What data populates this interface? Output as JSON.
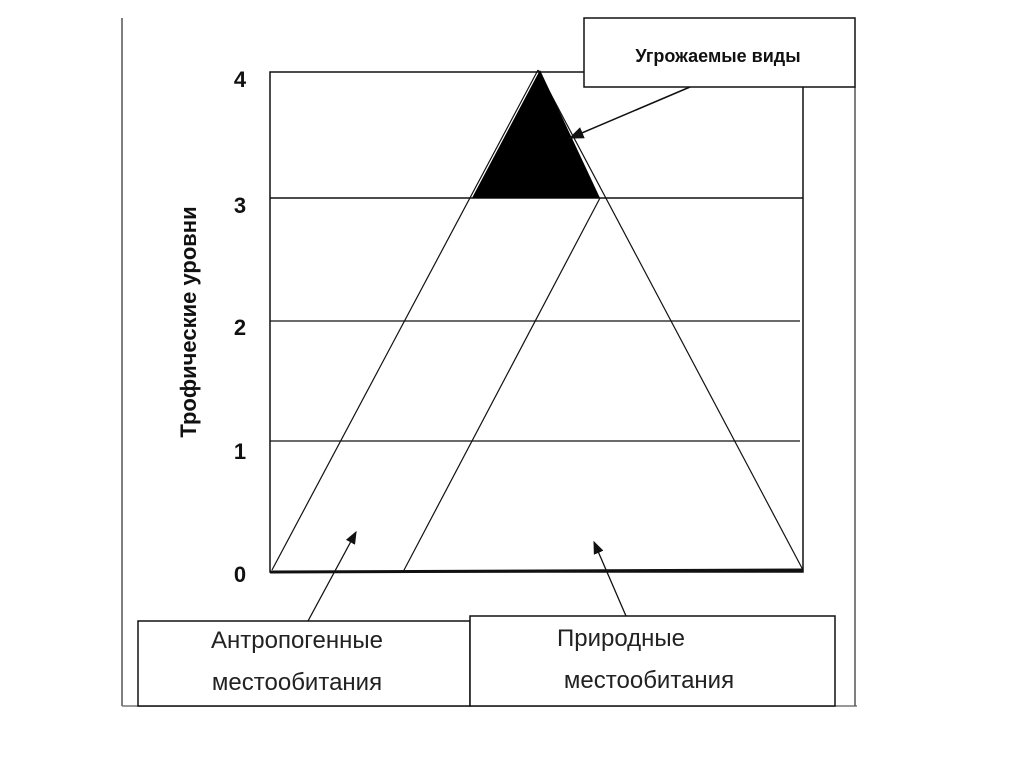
{
  "y_axis": {
    "label": "Трофические уровни",
    "ticks": [
      "0",
      "1",
      "2",
      "3",
      "4"
    ]
  },
  "callouts": {
    "threatened": "Угрожаемые виды",
    "anthropogenic": [
      "Антропогенные",
      "местообитания"
    ],
    "natural": [
      "Природные",
      "местообитания"
    ]
  },
  "colors": {
    "line": "#111111",
    "fill_threatened": "#000000",
    "frame": "#666666"
  }
}
